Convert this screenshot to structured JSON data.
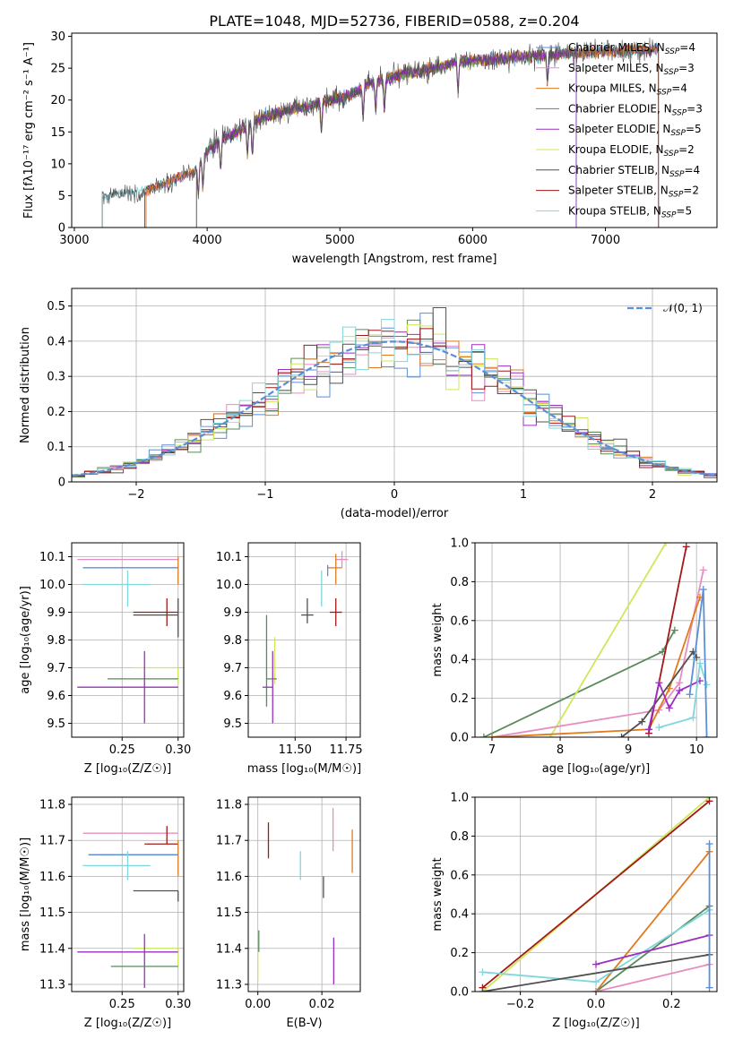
{
  "title": "PLATE=1048, MJD=52736, FIBERID=0588, z=0.204",
  "colors": {
    "chabrier_miles": "#5a8fd6",
    "salpeter_miles": "#e58fc0",
    "kroupa_miles": "#e07a1f",
    "chabrier_elodie": "#5a8a5a",
    "salpeter_elodie": "#9b2fc0",
    "kroupa_elodie": "#cde85a",
    "chabrier_stelib": "#505050",
    "salpeter_stelib": "#a01818",
    "kroupa_stelib": "#7fd6dc",
    "gaussian": "#5a8fd6",
    "grid": "#b0b0b0"
  },
  "chart_data": [
    {
      "id": "spectrum",
      "type": "line",
      "xlabel": "wavelength [Angstrom, rest frame]",
      "ylabel": "Flux [fλ10⁻¹⁷ erg cm⁻² s⁻¹ A⁻¹]",
      "xlim": [
        2980,
        7840
      ],
      "ylim": [
        0,
        30.5
      ],
      "xticks": [
        3000,
        4000,
        5000,
        6000,
        7000
      ],
      "yticks": [
        0,
        5,
        10,
        15,
        20,
        25,
        30
      ],
      "grid": false,
      "legend_position": "top-right",
      "legend": [
        {
          "name": "Chabrier MILES, N_SSP=4",
          "color": "chabrier_miles"
        },
        {
          "name": "Salpeter MILES, N_SSP=3",
          "color": "salpeter_miles"
        },
        {
          "name": "Kroupa MILES, N_SSP=4",
          "color": "kroupa_miles"
        },
        {
          "name": "Chabrier ELODIE, N_SSP=3",
          "color": "chabrier_elodie"
        },
        {
          "name": "Salpeter ELODIE, N_SSP=5",
          "color": "salpeter_elodie"
        },
        {
          "name": "Kroupa ELODIE, N_SSP=2",
          "color": "kroupa_elodie"
        },
        {
          "name": "Chabrier STELIB, N_SSP=4",
          "color": "chabrier_stelib"
        },
        {
          "name": "Salpeter STELIB, N_SSP=2",
          "color": "salpeter_stelib"
        },
        {
          "name": "Kroupa STELIB, N_SSP=5",
          "color": "kroupa_stelib"
        }
      ],
      "continuum": {
        "x": [
          3200,
          3300,
          3400,
          3500,
          3600,
          3700,
          3800,
          3900,
          4000,
          4100,
          4200,
          4300,
          4400,
          4500,
          4600,
          4700,
          4800,
          4900,
          5000,
          5100,
          5200,
          5300,
          5400,
          5500,
          5600,
          5700,
          5800,
          5900,
          6000,
          6100,
          6200,
          6300,
          6400,
          6500,
          6600,
          6700,
          6800,
          6900,
          7000,
          7100,
          7200,
          7300,
          7400
        ],
        "y": [
          4.8,
          5.2,
          5.5,
          5.6,
          6.2,
          7.0,
          8.2,
          8.5,
          12.0,
          13.8,
          14.5,
          16.0,
          17.0,
          17.8,
          18.3,
          18.8,
          19.2,
          19.8,
          20.3,
          21.0,
          22.5,
          23.0,
          23.6,
          24.2,
          24.5,
          25.0,
          25.5,
          26.0,
          26.2,
          26.3,
          26.5,
          26.7,
          26.9,
          27.0,
          27.1,
          27.3,
          27.4,
          27.5,
          27.6,
          27.7,
          27.8,
          27.9,
          28.0
        ]
      },
      "absorption_lines": [
        3934,
        3969,
        4102,
        4304,
        4341,
        4861,
        5175,
        5270,
        5335,
        5890,
        6563
      ]
    },
    {
      "id": "residuals",
      "type": "histogram",
      "xlabel": "(data-model)/error",
      "ylabel": "Normed distribution",
      "xlim": [
        -2.5,
        2.5
      ],
      "ylim": [
        0,
        0.55
      ],
      "xticks": [
        -2,
        -1,
        0,
        1,
        2
      ],
      "yticks": [
        0.0,
        0.1,
        0.2,
        0.3,
        0.4,
        0.5
      ],
      "grid": true,
      "legend_position": "top-right",
      "legend": [
        {
          "name": "𝒩(0, 1)",
          "color": "gaussian",
          "style": "dashed"
        }
      ],
      "bin_width": 0.1
    },
    {
      "id": "age-vs-Z",
      "type": "errorbar",
      "xlabel": "Z [log₁₀(Z/Z☉)]",
      "ylabel": "age  [log₁₀(age/yr)]",
      "xlim": [
        0.205,
        0.305
      ],
      "ylim": [
        9.45,
        10.15
      ],
      "xticks": [
        0.25,
        0.3
      ],
      "yticks": [
        9.5,
        9.6,
        9.7,
        9.8,
        9.9,
        10.0,
        10.1
      ],
      "grid": true,
      "points": [
        {
          "color": "salpeter_miles",
          "x": 0.3,
          "xerr": [
            0.09,
            0.0
          ],
          "y": 10.09,
          "yerr": [
            0.0,
            0.0
          ]
        },
        {
          "color": "kroupa_miles",
          "x": 0.3,
          "xerr": [
            0.085,
            0.0
          ],
          "y": 10.06,
          "yerr": [
            0.06,
            0.04
          ]
        },
        {
          "color": "chabrier_miles",
          "x": 0.3,
          "xerr": [
            0.085,
            0.0
          ],
          "y": 10.06,
          "yerr": [
            0.0,
            0.0
          ]
        },
        {
          "color": "kroupa_stelib",
          "x": 0.255,
          "xerr": [
            0.04,
            0.02
          ],
          "y": 10.0,
          "yerr": [
            0.08,
            0.05
          ]
        },
        {
          "color": "salpeter_stelib",
          "x": 0.29,
          "xerr": [
            0.03,
            0.01
          ],
          "y": 9.9,
          "yerr": [
            0.05,
            0.05
          ]
        },
        {
          "color": "chabrier_stelib",
          "x": 0.3,
          "xerr": [
            0.04,
            0.0
          ],
          "y": 9.89,
          "yerr": [
            0.08,
            0.06
          ]
        },
        {
          "color": "kroupa_elodie",
          "x": 0.3,
          "xerr": [
            0.04,
            0.0
          ],
          "y": 9.7,
          "yerr": [
            0.06,
            0.0
          ]
        },
        {
          "color": "chabrier_elodie",
          "x": 0.3,
          "xerr": [
            0.063,
            0.0
          ],
          "y": 9.66,
          "yerr": [
            0.0,
            0.0
          ]
        },
        {
          "color": "salpeter_elodie",
          "x": 0.27,
          "xerr": [
            0.06,
            0.03
          ],
          "y": 9.63,
          "yerr": [
            0.13,
            0.13
          ]
        }
      ]
    },
    {
      "id": "age-vs-mass",
      "type": "errorbar",
      "xlabel": "mass [log₁₀(M/M☉)]",
      "ylabel": "",
      "xlim": [
        11.27,
        11.82
      ],
      "ylim": [
        9.45,
        10.15
      ],
      "xticks": [
        11.5,
        11.75
      ],
      "yticks": [
        9.5,
        9.6,
        9.7,
        9.8,
        9.9,
        10.0,
        10.1
      ],
      "grid": true,
      "points": [
        {
          "color": "salpeter_miles",
          "x": 11.73,
          "xerr": [
            0.03,
            0.03
          ],
          "y": 10.09,
          "yerr": [
            0.03,
            0.03
          ]
        },
        {
          "color": "kroupa_miles",
          "x": 11.7,
          "xerr": [
            0.04,
            0.03
          ],
          "y": 10.06,
          "yerr": [
            0.06,
            0.05
          ]
        },
        {
          "color": "chabrier_miles",
          "x": 11.66,
          "xerr": [
            0.0,
            0.0
          ],
          "y": 10.05,
          "yerr": [
            0.02,
            0.02
          ]
        },
        {
          "color": "kroupa_stelib",
          "x": 11.63,
          "xerr": [
            0.0,
            0.0
          ],
          "y": 10.0,
          "yerr": [
            0.08,
            0.05
          ]
        },
        {
          "color": "salpeter_stelib",
          "x": 11.7,
          "xerr": [
            0.03,
            0.03
          ],
          "y": 9.9,
          "yerr": [
            0.05,
            0.05
          ]
        },
        {
          "color": "chabrier_stelib",
          "x": 11.56,
          "xerr": [
            0.03,
            0.03
          ],
          "y": 9.89,
          "yerr": [
            0.03,
            0.06
          ]
        },
        {
          "color": "kroupa_elodie",
          "x": 11.4,
          "xerr": [
            0.02,
            0.02
          ],
          "y": 9.7,
          "yerr": [
            0.06,
            0.11
          ]
        },
        {
          "color": "chabrier_elodie",
          "x": 11.36,
          "xerr": [
            0.0,
            0.05
          ],
          "y": 9.66,
          "yerr": [
            0.1,
            0.23
          ]
        },
        {
          "color": "salpeter_elodie",
          "x": 11.39,
          "xerr": [
            0.05,
            0.0
          ],
          "y": 9.63,
          "yerr": [
            0.13,
            0.13
          ]
        }
      ]
    },
    {
      "id": "mass-weight-vs-age",
      "type": "line",
      "xlabel": "age  [log₁₀(age/yr)]",
      "ylabel": "mass weight",
      "xlim": [
        6.75,
        10.3
      ],
      "ylim": [
        0,
        1.0
      ],
      "xticks": [
        7,
        8,
        9,
        10
      ],
      "yticks": [
        0.0,
        0.2,
        0.4,
        0.6,
        0.8,
        1.0
      ],
      "grid": true,
      "series": [
        {
          "color": "chabrier_elodie",
          "x": [
            6.88,
            9.5,
            9.68
          ],
          "y": [
            0.0,
            0.44,
            0.55
          ]
        },
        {
          "color": "kroupa_elodie",
          "x": [
            7.85,
            9.55
          ],
          "y": [
            0.0,
            1.0
          ]
        },
        {
          "color": "salpeter_miles",
          "x": [
            7.0,
            9.45,
            9.75,
            10.1
          ],
          "y": [
            0.0,
            0.14,
            0.28,
            0.86
          ]
        },
        {
          "color": "kroupa_miles",
          "x": [
            7.0,
            9.3,
            9.6,
            10.05
          ],
          "y": [
            0.0,
            0.04,
            0.25,
            0.72
          ]
        },
        {
          "color": "chabrier_stelib",
          "x": [
            8.9,
            9.2,
            9.95,
            10.0
          ],
          "y": [
            0.0,
            0.08,
            0.44,
            0.41
          ]
        },
        {
          "color": "salpeter_stelib",
          "x": [
            9.3,
            9.85
          ],
          "y": [
            0.02,
            0.98
          ]
        },
        {
          "color": "salpeter_elodie",
          "x": [
            9.3,
            9.45,
            9.6,
            9.75,
            10.05
          ],
          "y": [
            0.04,
            0.28,
            0.15,
            0.24,
            0.29
          ]
        },
        {
          "color": "kroupa_stelib",
          "x": [
            9.45,
            9.95,
            10.05,
            10.15
          ],
          "y": [
            0.05,
            0.1,
            0.38,
            0.27
          ]
        },
        {
          "color": "chabrier_miles",
          "x": [
            9.9,
            10.1,
            10.15
          ],
          "y": [
            0.22,
            0.76,
            0.0
          ]
        }
      ]
    },
    {
      "id": "mass-vs-Z",
      "type": "errorbar",
      "xlabel": "Z [log₁₀(Z/Z☉)]",
      "ylabel": "mass [log₁₀(M/M☉)]",
      "xlim": [
        0.205,
        0.305
      ],
      "ylim": [
        11.28,
        11.82
      ],
      "xticks": [
        0.25,
        0.3
      ],
      "yticks": [
        11.3,
        11.4,
        11.5,
        11.6,
        11.7,
        11.8
      ],
      "grid": true,
      "points": [
        {
          "color": "salpeter_miles",
          "x": 0.3,
          "xerr": [
            0.085,
            0.0
          ],
          "y": 11.72,
          "yerr": [
            0.0,
            0.0
          ]
        },
        {
          "color": "salpeter_stelib",
          "x": 0.29,
          "xerr": [
            0.02,
            0.01
          ],
          "y": 11.69,
          "yerr": [
            0.0,
            0.05
          ]
        },
        {
          "color": "kroupa_miles",
          "x": 0.3,
          "xerr": [
            0.08,
            0.0
          ],
          "y": 11.66,
          "yerr": [
            0.06,
            0.04
          ]
        },
        {
          "color": "chabrier_miles",
          "x": 0.3,
          "xerr": [
            0.08,
            0.0
          ],
          "y": 11.66,
          "yerr": [
            0.0,
            0.0
          ]
        },
        {
          "color": "kroupa_stelib",
          "x": 0.255,
          "xerr": [
            0.04,
            0.02
          ],
          "y": 11.63,
          "yerr": [
            0.04,
            0.04
          ]
        },
        {
          "color": "chabrier_stelib",
          "x": 0.3,
          "xerr": [
            0.04,
            0.0
          ],
          "y": 11.56,
          "yerr": [
            0.03,
            0.0
          ]
        },
        {
          "color": "kroupa_elodie",
          "x": 0.3,
          "xerr": [
            0.04,
            0.0
          ],
          "y": 11.4,
          "yerr": [
            0.05,
            0.0
          ]
        },
        {
          "color": "salpeter_elodie",
          "x": 0.27,
          "xerr": [
            0.06,
            0.03
          ],
          "y": 11.39,
          "yerr": [
            0.1,
            0.05
          ]
        },
        {
          "color": "chabrier_elodie",
          "x": 0.3,
          "xerr": [
            0.06,
            0.0
          ],
          "y": 11.35,
          "yerr": [
            0.0,
            0.0
          ]
        }
      ]
    },
    {
      "id": "mass-vs-EBV",
      "type": "errorbar",
      "xlabel": "E(B-V)",
      "ylabel": "",
      "xlim": [
        -0.003,
        0.032
      ],
      "ylim": [
        11.28,
        11.82
      ],
      "xticks": [
        0.0,
        0.02
      ],
      "yticks": [
        11.3,
        11.4,
        11.5,
        11.6,
        11.7,
        11.8
      ],
      "grid": true,
      "points": [
        {
          "color": "salpeter_miles",
          "x": 0.0235,
          "xerr": [
            0.0,
            0.0
          ],
          "y": 11.73,
          "yerr": [
            0.06,
            0.06
          ]
        },
        {
          "color": "salpeter_stelib",
          "x": 0.0033,
          "xerr": [
            0.0,
            0.0
          ],
          "y": 11.7,
          "yerr": [
            0.05,
            0.05
          ]
        },
        {
          "color": "kroupa_miles",
          "x": 0.0295,
          "xerr": [
            0.0,
            0.0
          ],
          "y": 11.67,
          "yerr": [
            0.06,
            0.06
          ]
        },
        {
          "color": "kroupa_stelib",
          "x": 0.0133,
          "xerr": [
            0.0,
            0.0
          ],
          "y": 11.63,
          "yerr": [
            0.04,
            0.04
          ]
        },
        {
          "color": "chabrier_stelib",
          "x": 0.0205,
          "xerr": [
            0.0,
            0.0
          ],
          "y": 11.57,
          "yerr": [
            0.03,
            0.03
          ]
        },
        {
          "color": "chabrier_elodie",
          "x": 0.0003,
          "xerr": [
            0.0,
            0.0
          ],
          "y": 11.42,
          "yerr": [
            0.03,
            0.03
          ]
        },
        {
          "color": "kroupa_elodie",
          "x": 0.0,
          "xerr": [
            0.0,
            0.0
          ],
          "y": 11.36,
          "yerr": [
            0.05,
            0.03
          ]
        },
        {
          "color": "salpeter_elodie",
          "x": 0.0237,
          "xerr": [
            0.0,
            0.0
          ],
          "y": 11.36,
          "yerr": [
            0.06,
            0.07
          ]
        }
      ]
    },
    {
      "id": "mass-weight-vs-Z",
      "type": "line",
      "xlabel": "Z [log₁₀(Z/Z☉)]",
      "ylabel": "mass weight",
      "xlim": [
        -0.32,
        0.32
      ],
      "ylim": [
        0,
        1.0
      ],
      "xticks": [
        -0.2,
        0.0,
        0.2
      ],
      "yticks": [
        0.0,
        0.2,
        0.4,
        0.6,
        0.8,
        1.0
      ],
      "grid": true,
      "series": [
        {
          "color": "kroupa_elodie",
          "x": [
            -0.3,
            0.3
          ],
          "y": [
            0.0,
            1.0
          ]
        },
        {
          "color": "salpeter_stelib",
          "x": [
            -0.3,
            0.3
          ],
          "y": [
            0.02,
            0.98
          ]
        },
        {
          "color": "kroupa_miles",
          "x": [
            0.0,
            0.3
          ],
          "y": [
            0.0,
            0.72
          ]
        },
        {
          "color": "chabrier_elodie",
          "x": [
            0.0,
            0.3
          ],
          "y": [
            0.0,
            0.44
          ]
        },
        {
          "color": "kroupa_stelib",
          "x": [
            -0.3,
            0.0,
            0.3
          ],
          "y": [
            0.1,
            0.05,
            0.42
          ]
        },
        {
          "color": "salpeter_elodie",
          "x": [
            0.0,
            0.3
          ],
          "y": [
            0.14,
            0.29
          ]
        },
        {
          "color": "chabrier_stelib",
          "x": [
            -0.3,
            0.3
          ],
          "y": [
            0.0,
            0.19
          ]
        },
        {
          "color": "salpeter_miles",
          "x": [
            0.0,
            0.3
          ],
          "y": [
            0.0,
            0.14
          ]
        },
        {
          "color": "chabrier_miles",
          "x": [
            0.3,
            0.3
          ],
          "y": [
            0.02,
            0.76
          ]
        }
      ]
    }
  ]
}
